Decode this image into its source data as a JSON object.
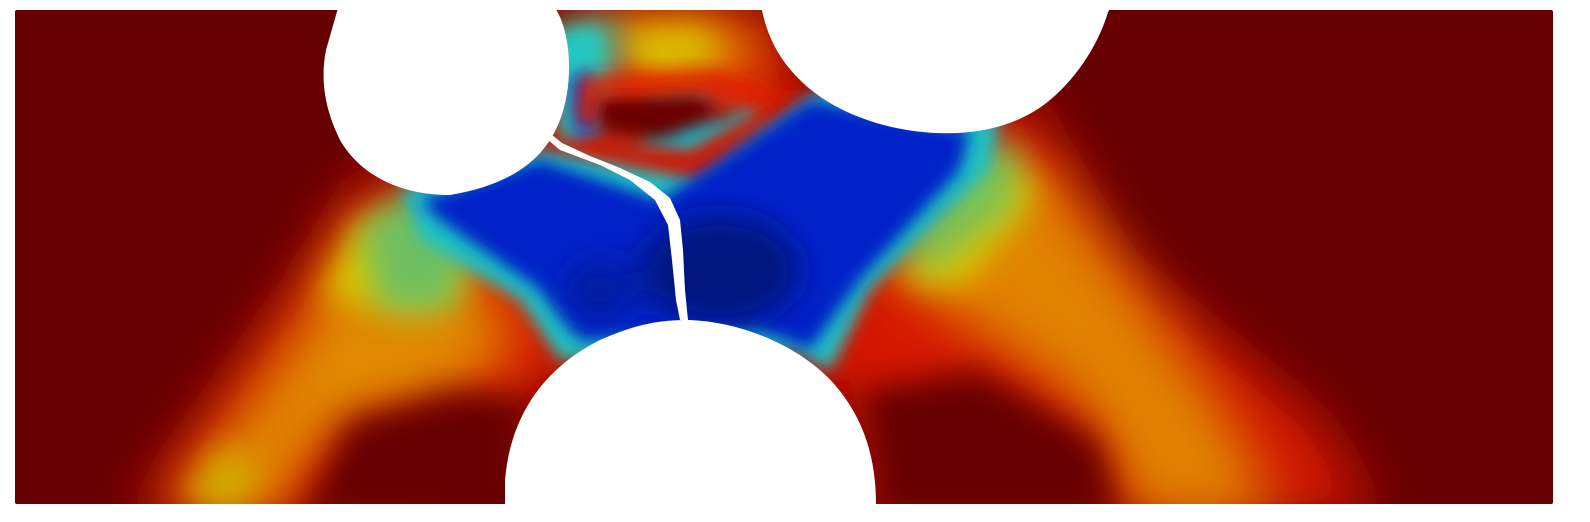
{
  "scene": {
    "kind": "field-plot",
    "colormap": "jet",
    "colors": {
      "background": "#ffffff",
      "dark_red": "#660000",
      "red": "#e41a00",
      "orange": "#e07a00",
      "gold": "#d4a800",
      "yellow": "#d8d000",
      "green": "#7ac45a",
      "cyan": "#17c5c9",
      "blue": "#0021c9",
      "dark_blue": "#00107a"
    },
    "elements": [
      "specimen-domain",
      "upper-left-hole",
      "upper-right-hole",
      "bottom-hole",
      "crack-path"
    ]
  }
}
